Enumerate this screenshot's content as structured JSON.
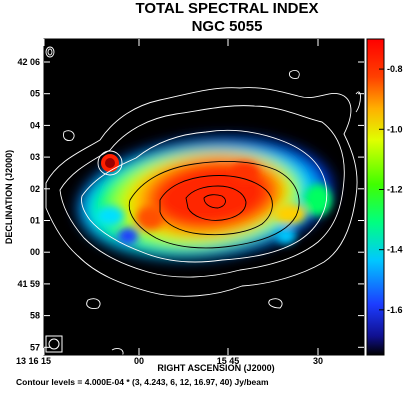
{
  "chart_data": {
    "type": "heatmap",
    "title": "TOTAL SPECTRAL INDEX",
    "subtitle": "NGC 5055",
    "xlabel": "RIGHT ASCENSION (J2000)",
    "ylabel": "DECLINATION (J2000)",
    "x_ticks": [
      "13 16 15",
      "00",
      "15 45",
      "30"
    ],
    "y_ticks": [
      "42 06",
      "05",
      "04",
      "03",
      "02",
      "01",
      "00",
      "41 59",
      "58",
      "57"
    ],
    "colorbar": {
      "ticks": [
        "-0.8",
        "-1.0",
        "-1.2",
        "-1.4",
        "-1.6"
      ],
      "range": [
        -1.75,
        -0.7
      ],
      "colors": [
        "#000000",
        "#1010c0",
        "#0070ff",
        "#00e0ff",
        "#00ff40",
        "#c0ff00",
        "#ffff00",
        "#ff8000",
        "#ff0000"
      ]
    },
    "map_range": {
      "min": -1.75,
      "max": -0.75
    },
    "contour_levels_text": "Contour levels = 4.000E-04 * (3, 4.243, 6, 12, 16.97, 40) Jy/beam",
    "contour_levels": [
      3,
      4.243,
      6,
      12,
      16.97,
      40
    ],
    "contour_unit": "Jy/beam",
    "contour_base": 0.0004
  }
}
